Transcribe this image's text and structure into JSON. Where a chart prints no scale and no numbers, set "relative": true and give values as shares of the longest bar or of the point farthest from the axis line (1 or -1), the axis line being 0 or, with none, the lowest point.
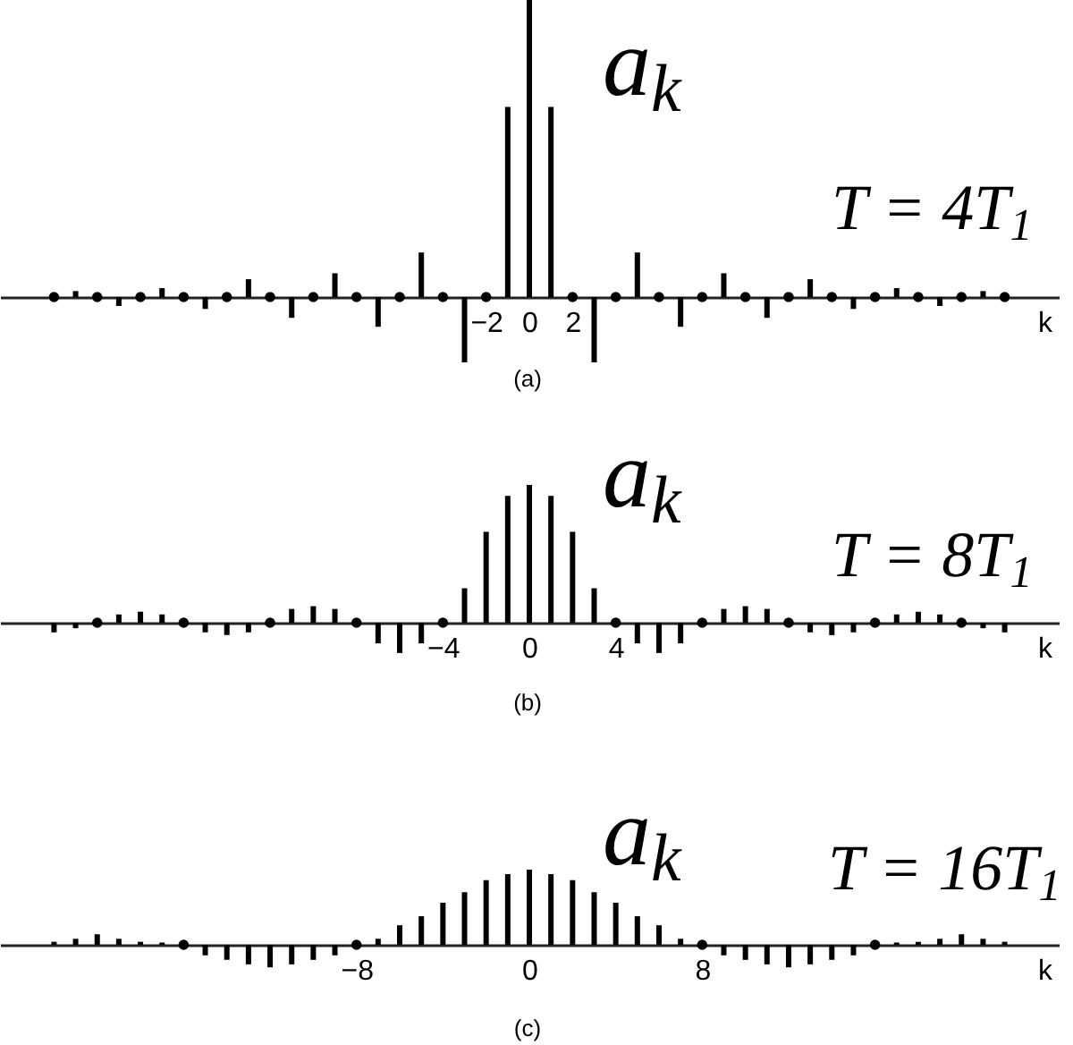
{
  "chart_data": [
    {
      "type": "bar",
      "relative": true,
      "ylabel": "a$_{k}$",
      "xlabel": "k",
      "annotations": [
        "T = 4T$_{1}$",
        "(a)"
      ],
      "xlim": [
        -24.5,
        24.5
      ],
      "xticks": [
        -2,
        0,
        2
      ],
      "marker": "circle",
      "x": [
        -22,
        -21,
        -20,
        -19,
        -18,
        -17,
        -16,
        -15,
        -14,
        -13,
        -12,
        -11,
        -10,
        -9,
        -8,
        -7,
        -6,
        -5,
        -4,
        -3,
        -2,
        -1,
        0,
        1,
        2,
        3,
        4,
        5,
        6,
        7,
        8,
        9,
        10,
        11,
        12,
        13,
        14,
        15,
        16,
        17,
        18,
        19,
        20,
        21,
        22
      ],
      "series": [
        {
          "color": "#000000",
          "values": [
            null,
            0.02,
            null,
            -0.03,
            null,
            0.03,
            null,
            -0.04,
            null,
            0.06,
            null,
            -0.07,
            null,
            0.08,
            null,
            -0.1,
            null,
            0.15,
            null,
            -0.22,
            null,
            0.64,
            1,
            0.64,
            null,
            -0.22,
            null,
            0.15,
            null,
            -0.1,
            null,
            0.08,
            null,
            -0.07,
            null,
            0.06,
            null,
            -0.04,
            null,
            0.03,
            null,
            -0.03,
            null,
            0.02,
            null
          ]
        },
        {
          "type": "scatter",
          "color": "#000000",
          "values": [
            0,
            null,
            0,
            null,
            0,
            null,
            0,
            null,
            0,
            null,
            0,
            null,
            0,
            null,
            0,
            null,
            0,
            null,
            0,
            null,
            0,
            null,
            null,
            null,
            0,
            null,
            0,
            null,
            0,
            null,
            0,
            null,
            0,
            null,
            0,
            null,
            0,
            null,
            0,
            null,
            0,
            null,
            0,
            null,
            0
          ]
        }
      ]
    },
    {
      "type": "bar",
      "relative": true,
      "ylabel": "a$_{k}$",
      "xlabel": "k",
      "annotations": [
        "T = 8T$_{1}$",
        "(b)"
      ],
      "xlim": [
        -24.5,
        24.5
      ],
      "xticks": [
        -4,
        0,
        4
      ],
      "marker": "circle",
      "x": [
        -22,
        -21,
        -20,
        -19,
        -18,
        -17,
        -16,
        -15,
        -14,
        -13,
        -12,
        -11,
        -10,
        -9,
        -8,
        -7,
        -6,
        -5,
        -4,
        -3,
        -2,
        -1,
        0,
        1,
        2,
        3,
        4,
        5,
        6,
        7,
        8,
        9,
        10,
        11,
        12,
        13,
        14,
        15,
        16,
        17,
        18,
        19,
        20,
        21,
        22
      ],
      "series": [
        {
          "color": "#000000",
          "values": [
            -0.07,
            -0.04,
            null,
            0.06,
            0.08,
            0.06,
            null,
            -0.07,
            -0.09,
            -0.07,
            null,
            0.1,
            0.12,
            0.1,
            null,
            -0.15,
            -0.22,
            -0.15,
            null,
            0.25,
            0.66,
            0.92,
            1,
            0.92,
            0.66,
            0.25,
            null,
            -0.15,
            -0.22,
            -0.15,
            null,
            0.1,
            0.12,
            0.1,
            null,
            -0.07,
            -0.09,
            -0.07,
            null,
            0.06,
            0.08,
            0.06,
            null,
            -0.04,
            -0.07
          ]
        },
        {
          "type": "scatter",
          "color": "#000000",
          "values": [
            null,
            null,
            0,
            null,
            null,
            null,
            0,
            null,
            null,
            null,
            0,
            null,
            null,
            null,
            0,
            null,
            null,
            null,
            0,
            null,
            null,
            null,
            null,
            null,
            null,
            null,
            0,
            null,
            null,
            null,
            0,
            null,
            null,
            null,
            0,
            null,
            null,
            null,
            0,
            null,
            null,
            null,
            0,
            null,
            null
          ]
        }
      ]
    },
    {
      "type": "bar",
      "relative": true,
      "ylabel": "a$_{k}$",
      "xlabel": "k",
      "annotations": [
        "T = 16T$_{1}$",
        "(c)"
      ],
      "xlim": [
        -24.5,
        24.5
      ],
      "xticks": [
        -8,
        0,
        8
      ],
      "marker": "circle",
      "x": [
        -22,
        -21,
        -20,
        -19,
        -18,
        -17,
        -16,
        -15,
        -14,
        -13,
        -12,
        -11,
        -10,
        -9,
        -8,
        -7,
        -6,
        -5,
        -4,
        -3,
        -2,
        -1,
        0,
        1,
        2,
        3,
        4,
        5,
        6,
        7,
        8,
        9,
        10,
        11,
        12,
        13,
        14,
        15,
        16,
        17,
        18,
        19,
        20,
        21,
        22
      ],
      "series": [
        {
          "color": "#000000",
          "values": [
            0.04,
            0.08,
            0.14,
            0.08,
            0.04,
            0.03,
            null,
            -0.14,
            -0.2,
            -0.26,
            -0.3,
            -0.26,
            -0.2,
            -0.14,
            null,
            0.08,
            0.26,
            0.38,
            0.56,
            0.7,
            0.86,
            0.94,
            1,
            0.94,
            0.86,
            0.7,
            0.56,
            0.38,
            0.26,
            0.08,
            null,
            -0.14,
            -0.2,
            -0.26,
            -0.3,
            -0.26,
            -0.2,
            -0.14,
            null,
            0.03,
            0.04,
            0.08,
            0.14,
            0.08,
            0.04
          ]
        },
        {
          "type": "scatter",
          "color": "#000000",
          "values": [
            null,
            null,
            null,
            null,
            null,
            null,
            0,
            null,
            null,
            null,
            null,
            null,
            null,
            null,
            0,
            null,
            null,
            null,
            null,
            null,
            null,
            null,
            null,
            null,
            null,
            null,
            null,
            null,
            null,
            null,
            0,
            null,
            null,
            null,
            null,
            null,
            null,
            null,
            0,
            null,
            null,
            null,
            null,
            null,
            null
          ]
        }
      ]
    }
  ]
}
